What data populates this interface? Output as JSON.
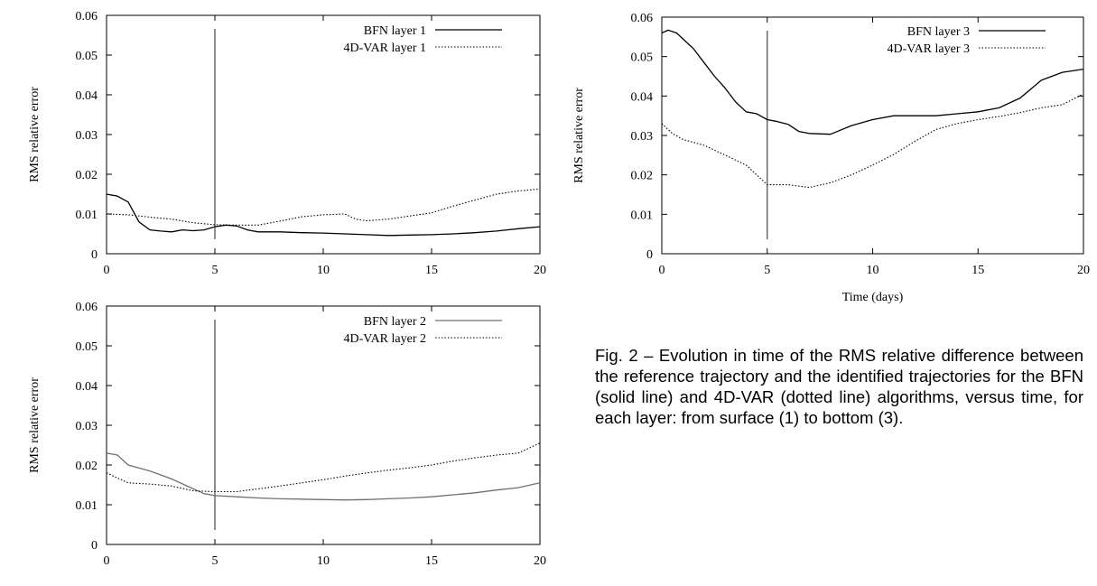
{
  "caption": "Fig. 2 – Evolution in time of the RMS relative difference between the reference trajectory and the identified trajectories for the BFN (solid line) and 4D-VAR (dotted line) algorithms, versus time, for each layer: from surface (1) to bottom (3).",
  "chart_data": [
    {
      "type": "line",
      "panel": "layer-1",
      "title": "",
      "xlabel": "",
      "ylabel": "RMS relative error",
      "xlim": [
        0,
        20
      ],
      "ylim": [
        0,
        0.06
      ],
      "xticks": [
        "0",
        "5",
        "10",
        "15",
        "20"
      ],
      "yticks": [
        "0",
        "0.01",
        "0.02",
        "0.03",
        "0.04",
        "0.05",
        "0.06"
      ],
      "legend_position": "top-right",
      "vertical_marker_x": 5,
      "series": [
        {
          "name": "BFN layer 1",
          "style": "solid",
          "color": "#000000",
          "x": [
            0,
            0.5,
            1,
            1.5,
            2,
            2.5,
            3,
            3.5,
            4,
            4.5,
            5,
            5.5,
            6,
            6.5,
            7,
            8,
            9,
            10,
            11,
            12,
            13,
            14,
            15,
            16,
            17,
            18,
            19,
            20
          ],
          "y": [
            0.015,
            0.0145,
            0.013,
            0.008,
            0.006,
            0.0057,
            0.0055,
            0.006,
            0.0058,
            0.006,
            0.0068,
            0.0072,
            0.007,
            0.006,
            0.0055,
            0.0055,
            0.0053,
            0.0052,
            0.005,
            0.0048,
            0.0046,
            0.0047,
            0.0048,
            0.005,
            0.0053,
            0.0057,
            0.0063,
            0.0068
          ]
        },
        {
          "name": "4D-VAR layer 1",
          "style": "dotted",
          "color": "#000000",
          "x": [
            0,
            1,
            2,
            3,
            4,
            5,
            6,
            7,
            8,
            9,
            10,
            11,
            11.5,
            12,
            13,
            14,
            15,
            16,
            17,
            18,
            19,
            20
          ],
          "y": [
            0.01,
            0.0098,
            0.0092,
            0.0087,
            0.0078,
            0.0073,
            0.0072,
            0.0072,
            0.0082,
            0.0093,
            0.0098,
            0.01,
            0.0087,
            0.0083,
            0.0087,
            0.0095,
            0.0103,
            0.012,
            0.0135,
            0.015,
            0.0158,
            0.0163
          ]
        }
      ]
    },
    {
      "type": "line",
      "panel": "layer-2",
      "title": "",
      "xlabel": "",
      "ylabel": "RMS relative error",
      "xlim": [
        0,
        20
      ],
      "ylim": [
        0,
        0.06
      ],
      "xticks": [
        "0",
        "5",
        "10",
        "15",
        "20"
      ],
      "yticks": [
        "0",
        "0.01",
        "0.02",
        "0.03",
        "0.04",
        "0.05",
        "0.06"
      ],
      "legend_position": "top-right",
      "vertical_marker_x": 5,
      "series": [
        {
          "name": "BFN layer 2",
          "style": "solid",
          "color": "#707070",
          "x": [
            0,
            0.5,
            1,
            2,
            3,
            4,
            4.5,
            5,
            6,
            7,
            8,
            9,
            10,
            11,
            12,
            13,
            14,
            15,
            16,
            17,
            18,
            19,
            20
          ],
          "y": [
            0.023,
            0.0225,
            0.02,
            0.0185,
            0.0165,
            0.014,
            0.0128,
            0.0123,
            0.012,
            0.0117,
            0.0115,
            0.0114,
            0.0113,
            0.0112,
            0.0113,
            0.0115,
            0.0117,
            0.012,
            0.0125,
            0.013,
            0.0137,
            0.0143,
            0.0155
          ]
        },
        {
          "name": "4D-VAR layer 2",
          "style": "dotted",
          "color": "#000000",
          "x": [
            0,
            1,
            2,
            3,
            4,
            5,
            6,
            7,
            8,
            9,
            10,
            11,
            12,
            13,
            14,
            15,
            16,
            17,
            18,
            19,
            20
          ],
          "y": [
            0.018,
            0.0155,
            0.0152,
            0.0147,
            0.0135,
            0.0133,
            0.0133,
            0.014,
            0.0147,
            0.0155,
            0.0163,
            0.0172,
            0.018,
            0.0187,
            0.0193,
            0.02,
            0.021,
            0.0218,
            0.0225,
            0.023,
            0.0255
          ]
        }
      ]
    },
    {
      "type": "line",
      "panel": "layer-3",
      "title": "",
      "xlabel": "Time (days)",
      "ylabel": "RMS relative error",
      "xlim": [
        0,
        20
      ],
      "ylim": [
        0,
        0.06
      ],
      "xticks": [
        "0",
        "5",
        "10",
        "15",
        "20"
      ],
      "yticks": [
        "0",
        "0.01",
        "0.02",
        "0.03",
        "0.04",
        "0.05",
        "0.06"
      ],
      "legend_position": "top-right",
      "vertical_marker_x": 5,
      "series": [
        {
          "name": "BFN layer 3",
          "style": "solid",
          "color": "#000000",
          "x": [
            0,
            0.3,
            0.7,
            1,
            1.5,
            2,
            2.5,
            3,
            3.5,
            4,
            4.5,
            5,
            5.5,
            6,
            6.5,
            7,
            8,
            9,
            10,
            11,
            12,
            13,
            14,
            15,
            16,
            17,
            18,
            19,
            20
          ],
          "y": [
            0.056,
            0.0567,
            0.056,
            0.0545,
            0.052,
            0.0485,
            0.045,
            0.042,
            0.0385,
            0.036,
            0.0355,
            0.034,
            0.0335,
            0.0328,
            0.031,
            0.0305,
            0.0303,
            0.0325,
            0.034,
            0.035,
            0.035,
            0.035,
            0.0355,
            0.036,
            0.037,
            0.0395,
            0.044,
            0.046,
            0.0468
          ]
        },
        {
          "name": "4D-VAR layer 3",
          "style": "dotted",
          "color": "#000000",
          "x": [
            0,
            0.5,
            1,
            2,
            3,
            4,
            4.5,
            5,
            6,
            7,
            8,
            9,
            10,
            11,
            12,
            13,
            14,
            15,
            16,
            17,
            18,
            19,
            20
          ],
          "y": [
            0.033,
            0.0305,
            0.029,
            0.0275,
            0.025,
            0.0225,
            0.02,
            0.0175,
            0.0175,
            0.0168,
            0.018,
            0.02,
            0.0225,
            0.0252,
            0.0285,
            0.0315,
            0.033,
            0.034,
            0.0348,
            0.0358,
            0.037,
            0.0378,
            0.0405
          ]
        }
      ]
    }
  ]
}
